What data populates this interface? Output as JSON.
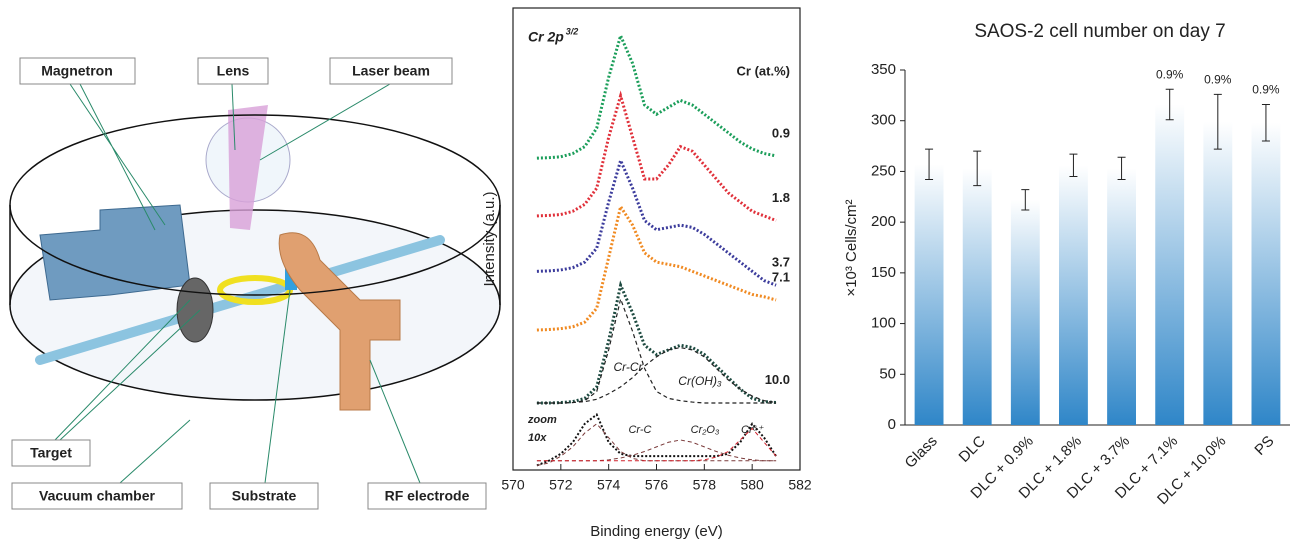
{
  "diagram": {
    "labels": [
      "Magnetron",
      "Lens",
      "Laser beam",
      "Target",
      "Vacuum chamber",
      "Substrate",
      "RF electrode"
    ]
  },
  "chart_data": [
    {
      "type": "line",
      "title": "Cr 2p",
      "title_superscript": "3/2",
      "xlabel": "Binding energy (eV)",
      "ylabel": "Intensity (a.u.)",
      "legend_title": "Cr (at.%)",
      "x": [
        571,
        571.5,
        572,
        572.5,
        573,
        573.5,
        574,
        574.5,
        575,
        575.5,
        576,
        576.5,
        577,
        577.5,
        578,
        578.5,
        579,
        579.5,
        580,
        580.5,
        581
      ],
      "xlim": [
        570,
        582
      ],
      "xticks": [
        570,
        572,
        574,
        576,
        578,
        580,
        582
      ],
      "ylim": [
        0,
        100
      ],
      "series": [
        {
          "name": "0.9",
          "color": "#1b9e5a",
          "values": [
            67.5,
            67.6,
            67.8,
            68.5,
            70,
            74,
            85,
            94,
            88,
            79,
            77,
            78.5,
            80,
            79,
            77,
            75,
            73,
            71,
            69.5,
            68.5,
            68
          ]
        },
        {
          "name": "1.8",
          "color": "#e0303a",
          "values": [
            55,
            55.1,
            55.3,
            56,
            57.5,
            61,
            72,
            81,
            72,
            63,
            63,
            66,
            70,
            69,
            66,
            63,
            60,
            58,
            56,
            55,
            54
          ]
        },
        {
          "name": "3.7",
          "color": "#3c3c9c",
          "values": [
            43,
            43.1,
            43.3,
            43.8,
            45,
            48,
            58,
            67,
            61,
            54,
            52,
            52.5,
            53,
            52.5,
            51,
            49,
            47,
            45,
            43,
            41,
            40
          ]
        },
        {
          "name": "7.1",
          "color": "#f08a22",
          "values": [
            30.3,
            30.4,
            30.6,
            31,
            32,
            35,
            46,
            57,
            53,
            47,
            45,
            44.5,
            44,
            43,
            42,
            41,
            40,
            39,
            38,
            37.5,
            36.8
          ]
        },
        {
          "name": "10.0",
          "color": "#1d4a40",
          "values": [
            14.5,
            14.5,
            14.6,
            14.8,
            15.5,
            18,
            28,
            40,
            34,
            27,
            25,
            26,
            27,
            26.5,
            25,
            22.5,
            20,
            17.5,
            15.5,
            14.8,
            14.6
          ]
        }
      ],
      "components": [
        {
          "name": "Cr-Cr",
          "color": "#222222",
          "values": [
            14.5,
            14.5,
            14.5,
            14.6,
            15,
            17,
            26,
            37,
            30,
            22,
            17,
            15.5,
            15,
            14.7,
            14.5,
            14.5,
            14.5,
            14.5,
            14.5,
            14.5,
            14.5
          ]
        },
        {
          "name": "Cr(OH)₃",
          "color": "#222222",
          "values": [
            14.5,
            14.5,
            14.5,
            14.6,
            14.8,
            15.3,
            16.5,
            18,
            20,
            22.5,
            24.5,
            26,
            26.5,
            26,
            24.5,
            22,
            19.5,
            17.5,
            16,
            15,
            14.6
          ]
        }
      ],
      "zoom": {
        "label": "zoom",
        "factor": "10x",
        "color": "#111111",
        "values": [
          1,
          2,
          3.5,
          6,
          10,
          12,
          6,
          3.5,
          3,
          3,
          3,
          3,
          3,
          3,
          3,
          3,
          3.5,
          6,
          10,
          7,
          3
        ],
        "components": [
          {
            "name": "Cr-C",
            "color": "#7a3a3a",
            "values": [
              1,
              1.5,
              3,
              5,
              8,
              10,
              7,
              4,
              2.5,
              2,
              2,
              2,
              2,
              2,
              2,
              2,
              2,
              2,
              2,
              2,
              2
            ]
          },
          {
            "name": "Cr₂O₃",
            "color": "#7a3a3a",
            "values": [
              2,
              2,
              2,
              2,
              2,
              2,
              2.2,
              2.6,
              3.2,
              4,
              5,
              6,
              6.5,
              6,
              5,
              4,
              3.2,
              2.6,
              2.2,
              2,
              2
            ]
          },
          {
            "name": "Cr⁶⁺",
            "color": "#d0202a",
            "values": [
              2,
              2,
              2,
              2,
              2,
              2,
              2,
              2,
              2,
              2,
              2,
              2,
              2,
              2,
              2.2,
              2.8,
              4,
              6.5,
              9,
              6,
              3
            ]
          }
        ]
      }
    },
    {
      "type": "bar",
      "title": "SAOS-2 cell number on day 7",
      "ylabel": "×10³ Cells/cm²",
      "categories": [
        "Glass",
        "DLC",
        "DLC + 0.9%",
        "DLC + 1.8%",
        "DLC + 3.7%",
        "DLC + 7.1%",
        "DLC + 10.0%",
        "PS"
      ],
      "values": [
        257,
        253,
        222,
        256,
        253,
        316,
        299,
        298
      ],
      "errors": [
        15,
        17,
        10,
        11,
        11,
        15,
        27,
        18
      ],
      "bar_annotations": [
        null,
        null,
        null,
        null,
        null,
        "0.9%",
        "0.9%",
        "0.9%"
      ],
      "color": "#2f86c8",
      "ylim": [
        0,
        350
      ],
      "yticks": [
        0,
        50,
        100,
        150,
        200,
        250,
        300,
        350
      ]
    }
  ]
}
